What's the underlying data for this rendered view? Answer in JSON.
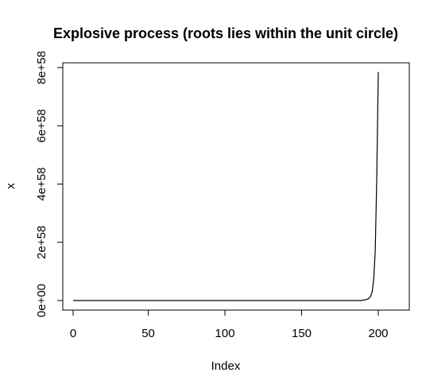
{
  "chart_data": {
    "type": "line",
    "title": "Explosive process (roots lies within the unit circle)",
    "xlabel": "Index",
    "ylabel": "x",
    "xlim": [
      1,
      200
    ],
    "ylim": [
      0,
      7.85e+58
    ],
    "x_ticks": [
      {
        "value": 50,
        "label": "50"
      },
      {
        "value": 100,
        "label": "100"
      },
      {
        "value": 150,
        "label": "150"
      },
      {
        "value": 200,
        "label": "200"
      }
    ],
    "x_tick_zero": {
      "value": 0,
      "label": "0"
    },
    "y_ticks": [
      {
        "value": 0,
        "label": "0e+00"
      },
      {
        "value": 2e+58,
        "label": "2e+58"
      },
      {
        "value": 4e+58,
        "label": "4e+58"
      },
      {
        "value": 6e+58,
        "label": "6e+58"
      },
      {
        "value": 8e+58,
        "label": "8e+58"
      }
    ],
    "series": [
      {
        "x": [
          1,
          20,
          40,
          60,
          80,
          100,
          120,
          140,
          160,
          180,
          185,
          188,
          190,
          192,
          193,
          194,
          195,
          196,
          197,
          198,
          199,
          200
        ],
        "y": [
          0,
          0,
          0,
          0,
          0,
          0,
          0,
          0,
          0,
          0,
          0,
          0,
          1e+56,
          3e+56,
          5e+56,
          8e+56,
          1.5e+57,
          3e+57,
          7e+57,
          1.7e+58,
          4.2e+58,
          7.85e+58
        ]
      }
    ],
    "grid": false,
    "legend": "none",
    "line_color": "#000000"
  }
}
